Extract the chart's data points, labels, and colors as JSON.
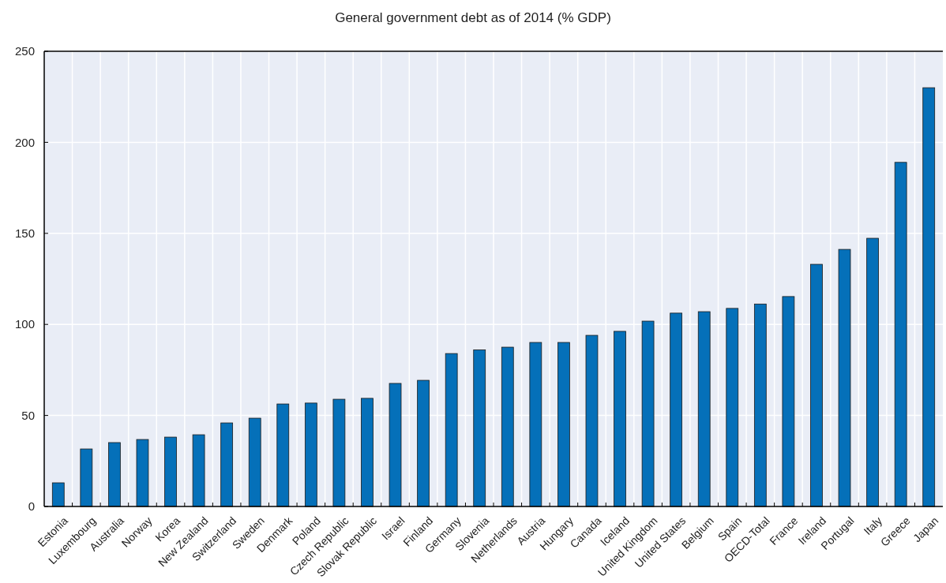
{
  "chart_data": {
    "type": "bar",
    "title": "General government debt as of 2014 (% GDP)",
    "categories": [
      "Estonia",
      "Luxembourg",
      "Australia",
      "Norway",
      "Korea",
      "New Zealand",
      "Switzerland",
      "Sweden",
      "Denmark",
      "Poland",
      "Czech Republic",
      "Slovak Republic",
      "Israel",
      "Finland",
      "Germany",
      "Slovenia",
      "Netherlands",
      "Austria",
      "Hungary",
      "Canada",
      "Iceland",
      "United Kingdom",
      "United States",
      "Belgium",
      "Spain",
      "OECD-Total",
      "France",
      "Ireland",
      "Portugal",
      "Italy",
      "Greece",
      "Japan"
    ],
    "series": [
      {
        "color": "#0570b9",
        "values": [
          13,
          31.6,
          35.1,
          36.8,
          38.1,
          39.4,
          45.9,
          48.5,
          56.3,
          56.8,
          58.9,
          59.4,
          67.6,
          69.3,
          84,
          86,
          87.5,
          90.1,
          90.1,
          94,
          96.2,
          101.8,
          106.2,
          107,
          108.8,
          111.2,
          115.3,
          133,
          141.2,
          147.3,
          189,
          230
        ]
      }
    ],
    "ylim": [
      0,
      250
    ],
    "yticks": [
      0,
      50,
      100,
      150,
      200,
      250
    ],
    "grid": true
  }
}
